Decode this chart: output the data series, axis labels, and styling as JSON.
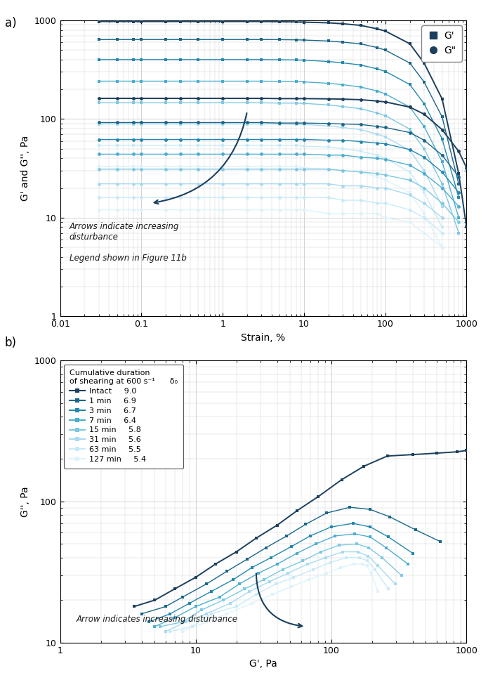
{
  "colors_8": [
    "#1b3f5e",
    "#1a6688",
    "#2288b0",
    "#4badd0",
    "#7ec8e3",
    "#a8daf0",
    "#c8eaf8",
    "#ddf2fc"
  ],
  "legend_labels": [
    "Intact",
    "1 min",
    "3 min",
    "7 min",
    "15 min",
    "31 min",
    "63 min",
    "127 min"
  ],
  "delta0_values": [
    "9.0",
    "6.9",
    "6.7",
    "6.4",
    "5.8",
    "5.6",
    "5.5",
    "5.4"
  ],
  "panel_a": {
    "xlabel": "Strain, %",
    "ylabel": "G' and G'', Pa",
    "G_prime_plateau": [
      975,
      640,
      400,
      242,
      146,
      89,
      54,
      33
    ],
    "G_prime_onset": [
      100,
      80,
      60,
      50,
      40,
      30,
      25,
      20
    ],
    "G_doubleprime_plateau": [
      162,
      92,
      62,
      44,
      31,
      22,
      16,
      12
    ],
    "G_doubleprime_onset": [
      300,
      200,
      150,
      120,
      90,
      70,
      55,
      45
    ],
    "strain_x": [
      0.03,
      0.05,
      0.08,
      0.1,
      0.2,
      0.3,
      0.5,
      1.0,
      2.0,
      3.0,
      5.0,
      8.0,
      10.0,
      20.0,
      30.0,
      50.0,
      80.0,
      100.0,
      200.0,
      300.0,
      500.0,
      800.0,
      1000.0
    ],
    "G_prime_data": [
      [
        975,
        975,
        975,
        975,
        975,
        975,
        975,
        975,
        975,
        975,
        970,
        965,
        960,
        945,
        925,
        890,
        820,
        780,
        580,
        370,
        160,
        28,
        8
      ],
      [
        640,
        640,
        640,
        640,
        640,
        640,
        640,
        640,
        640,
        640,
        638,
        635,
        632,
        618,
        602,
        578,
        530,
        500,
        370,
        238,
        105,
        22,
        null
      ],
      [
        400,
        400,
        400,
        400,
        400,
        400,
        400,
        400,
        400,
        400,
        399,
        397,
        395,
        383,
        371,
        353,
        322,
        304,
        224,
        143,
        63,
        16,
        null
      ],
      [
        242,
        242,
        242,
        242,
        242,
        242,
        242,
        242,
        242,
        242,
        241,
        240,
        238,
        230,
        223,
        211,
        192,
        180,
        132,
        84,
        37,
        10,
        null
      ],
      [
        146,
        146,
        146,
        146,
        146,
        146,
        146,
        146,
        146,
        146,
        145,
        145,
        144,
        139,
        134,
        127,
        115,
        108,
        79,
        50,
        22,
        7,
        null
      ],
      [
        89,
        89,
        89,
        89,
        89,
        89,
        89,
        89,
        89,
        89,
        89,
        88,
        88,
        85,
        82,
        78,
        70,
        66,
        48,
        30,
        13,
        null,
        null
      ],
      [
        54,
        54,
        54,
        54,
        54,
        54,
        54,
        54,
        54,
        54,
        54,
        54,
        53,
        52,
        50,
        47,
        43,
        40,
        29,
        18,
        8,
        null,
        null
      ],
      [
        33,
        33,
        33,
        33,
        33,
        33,
        33,
        33,
        33,
        33,
        33,
        33,
        32,
        31,
        30,
        29,
        26,
        24,
        18,
        11,
        5,
        null,
        null
      ]
    ],
    "G_doubleprime_data": [
      [
        162,
        162,
        162,
        162,
        162,
        162,
        162,
        162,
        162,
        162,
        161,
        161,
        161,
        160,
        159,
        157,
        152,
        149,
        132,
        112,
        78,
        47,
        32
      ],
      [
        92,
        92,
        92,
        92,
        92,
        92,
        92,
        92,
        92,
        92,
        91,
        91,
        91,
        90,
        89,
        88,
        84,
        82,
        73,
        61,
        43,
        26,
        null
      ],
      [
        62,
        62,
        62,
        62,
        62,
        62,
        62,
        62,
        62,
        62,
        62,
        62,
        62,
        61,
        61,
        59,
        57,
        56,
        49,
        41,
        29,
        18,
        null
      ],
      [
        44,
        44,
        44,
        44,
        44,
        44,
        44,
        44,
        44,
        44,
        44,
        44,
        44,
        43,
        43,
        41,
        40,
        39,
        34,
        28,
        20,
        13,
        null
      ],
      [
        31,
        31,
        31,
        31,
        31,
        31,
        31,
        31,
        31,
        31,
        31,
        31,
        31,
        31,
        30,
        29,
        28,
        27,
        24,
        20,
        14,
        9,
        null
      ],
      [
        22,
        22,
        22,
        22,
        22,
        22,
        22,
        22,
        22,
        22,
        22,
        22,
        22,
        22,
        21,
        21,
        20,
        20,
        17,
        14,
        10,
        null,
        null
      ],
      [
        16,
        16,
        16,
        16,
        16,
        16,
        16,
        16,
        16,
        16,
        16,
        16,
        16,
        16,
        15,
        15,
        14,
        14,
        12,
        10,
        7,
        null,
        null
      ],
      [
        12,
        12,
        12,
        12,
        12,
        12,
        12,
        12,
        12,
        12,
        12,
        12,
        12,
        11,
        11,
        11,
        11,
        10,
        9,
        7,
        5,
        null,
        null
      ]
    ]
  },
  "panel_b": {
    "xlabel": "G', Pa",
    "ylabel": "G'', Pa",
    "lissajous_data": [
      {
        "Gp": [
          3.5,
          5,
          7,
          10,
          14,
          20,
          28,
          40,
          56,
          80,
          120,
          175,
          260,
          400,
          600,
          850,
          1000
        ],
        "Gdp": [
          18,
          20,
          24,
          29,
          36,
          44,
          55,
          68,
          86,
          108,
          143,
          178,
          210,
          215,
          220,
          225,
          230
        ]
      },
      {
        "Gp": [
          4,
          6,
          8,
          12,
          17,
          24,
          33,
          47,
          65,
          93,
          138,
          193,
          270,
          420,
          640
        ],
        "Gdp": [
          16,
          18,
          21,
          26,
          32,
          39,
          47,
          57,
          69,
          83,
          91,
          88,
          78,
          63,
          52
        ]
      },
      {
        "Gp": [
          4.5,
          6.5,
          9,
          13,
          19,
          26,
          36,
          51,
          70,
          100,
          145,
          195,
          265,
          400
        ],
        "Gdp": [
          14,
          16,
          19,
          23,
          28,
          34,
          40,
          48,
          57,
          66,
          70,
          66,
          56,
          43
        ]
      },
      {
        "Gp": [
          5,
          7,
          10,
          15,
          21,
          29,
          40,
          56,
          77,
          107,
          150,
          195,
          255,
          370
        ],
        "Gdp": [
          13,
          15,
          18,
          21,
          26,
          31,
          36,
          43,
          50,
          57,
          59,
          56,
          47,
          36
        ]
      },
      {
        "Gp": [
          5.5,
          8,
          11,
          16,
          23,
          32,
          44,
          62,
          84,
          115,
          155,
          190,
          238,
          330
        ],
        "Gdp": [
          13,
          14,
          17,
          20,
          24,
          28,
          33,
          38,
          44,
          49,
          50,
          47,
          40,
          30
        ]
      },
      {
        "Gp": [
          6,
          8.5,
          12,
          18,
          25,
          35,
          48,
          67,
          91,
          122,
          158,
          188,
          222,
          298
        ],
        "Gdp": [
          12,
          14,
          16,
          19,
          23,
          27,
          31,
          36,
          40,
          44,
          44,
          41,
          35,
          26
        ]
      },
      {
        "Gp": [
          6.5,
          9.5,
          13,
          20,
          28,
          39,
          53,
          74,
          99,
          130,
          162,
          185,
          210,
          265
        ],
        "Gdp": [
          12,
          13,
          16,
          18,
          22,
          26,
          29,
          33,
          37,
          40,
          40,
          38,
          33,
          24
        ]
      },
      {
        "Gp": [
          8,
          12,
          17,
          26,
          37,
          51,
          69,
          92,
          118,
          147,
          170,
          184,
          198,
          222
        ],
        "Gdp": [
          12,
          14,
          16,
          19,
          22,
          25,
          28,
          31,
          34,
          36,
          36,
          35,
          31,
          23
        ]
      }
    ]
  },
  "background_color": "#ffffff",
  "grid_color": "#cccccc",
  "text_color": "#1a1a1a"
}
